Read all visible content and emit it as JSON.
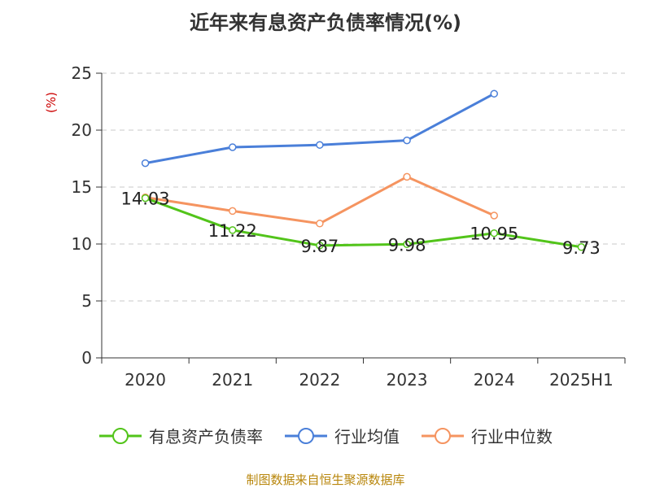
{
  "chart_data": {
    "type": "line",
    "title": "近年来有息资产负债率情况(%)",
    "ylabel": "(%)",
    "xlabel": "",
    "categories": [
      "2020",
      "2021",
      "2022",
      "2023",
      "2024",
      "2025H1"
    ],
    "ylim": [
      0,
      25
    ],
    "yticks": [
      0,
      5,
      10,
      15,
      20,
      25
    ],
    "grid": true,
    "legend_position": "bottom",
    "series": [
      {
        "name": "有息资产负债率",
        "color": "#52c41a",
        "values": [
          14.03,
          11.22,
          9.87,
          9.98,
          10.95,
          9.73
        ],
        "labels": [
          "14.03",
          "11.22",
          "9.87",
          "9.98",
          "10.95",
          "9.73"
        ]
      },
      {
        "name": "行业均值",
        "color": "#4a7fd9",
        "values": [
          17.1,
          18.5,
          18.7,
          19.1,
          23.2,
          null
        ]
      },
      {
        "name": "行业中位数",
        "color": "#f59460",
        "values": [
          14.1,
          12.9,
          11.8,
          15.9,
          12.5,
          null
        ]
      }
    ]
  },
  "source": "制图数据来自恒生聚源数据库"
}
